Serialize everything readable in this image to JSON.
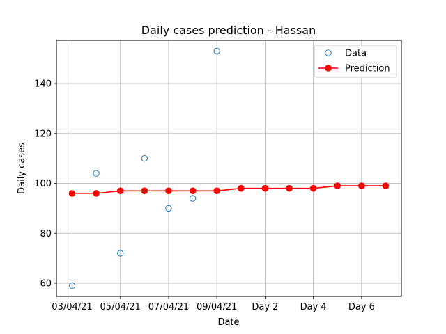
{
  "chart_data": {
    "type": "line",
    "title": "Daily cases prediction - Hassan",
    "xlabel": "Date",
    "ylabel": "Daily cases",
    "x_positions": [
      0,
      1,
      2,
      3,
      4,
      5,
      6,
      7,
      8,
      9,
      10,
      11,
      12,
      13
    ],
    "x_ticks": [
      {
        "pos": 0,
        "label": "03/04/21"
      },
      {
        "pos": 2,
        "label": "05/04/21"
      },
      {
        "pos": 4,
        "label": "07/04/21"
      },
      {
        "pos": 6,
        "label": "09/04/21"
      },
      {
        "pos": 8,
        "label": "Day 2"
      },
      {
        "pos": 10,
        "label": "Day 4"
      },
      {
        "pos": 12,
        "label": "Day 6"
      }
    ],
    "y_ticks": [
      60,
      80,
      100,
      120,
      140
    ],
    "xlim": [
      -0.65,
      13.65
    ],
    "ylim": [
      54.7,
      157.3
    ],
    "grid": true,
    "legend_position": "top-right",
    "series": [
      {
        "name": "Data",
        "style": "scatter-open-circle",
        "color": "#1f77b4",
        "x": [
          0,
          1,
          2,
          3,
          4,
          5,
          6
        ],
        "values": [
          59,
          104,
          72,
          110,
          90,
          94,
          153
        ]
      },
      {
        "name": "Prediction",
        "style": "line-marker",
        "color": "#ff0000",
        "x": [
          0,
          1,
          2,
          3,
          4,
          5,
          6,
          7,
          8,
          9,
          10,
          11,
          12,
          13
        ],
        "values": [
          96,
          96,
          97,
          97,
          97,
          97,
          97,
          98,
          98,
          98,
          98,
          99,
          99,
          99
        ]
      }
    ]
  }
}
